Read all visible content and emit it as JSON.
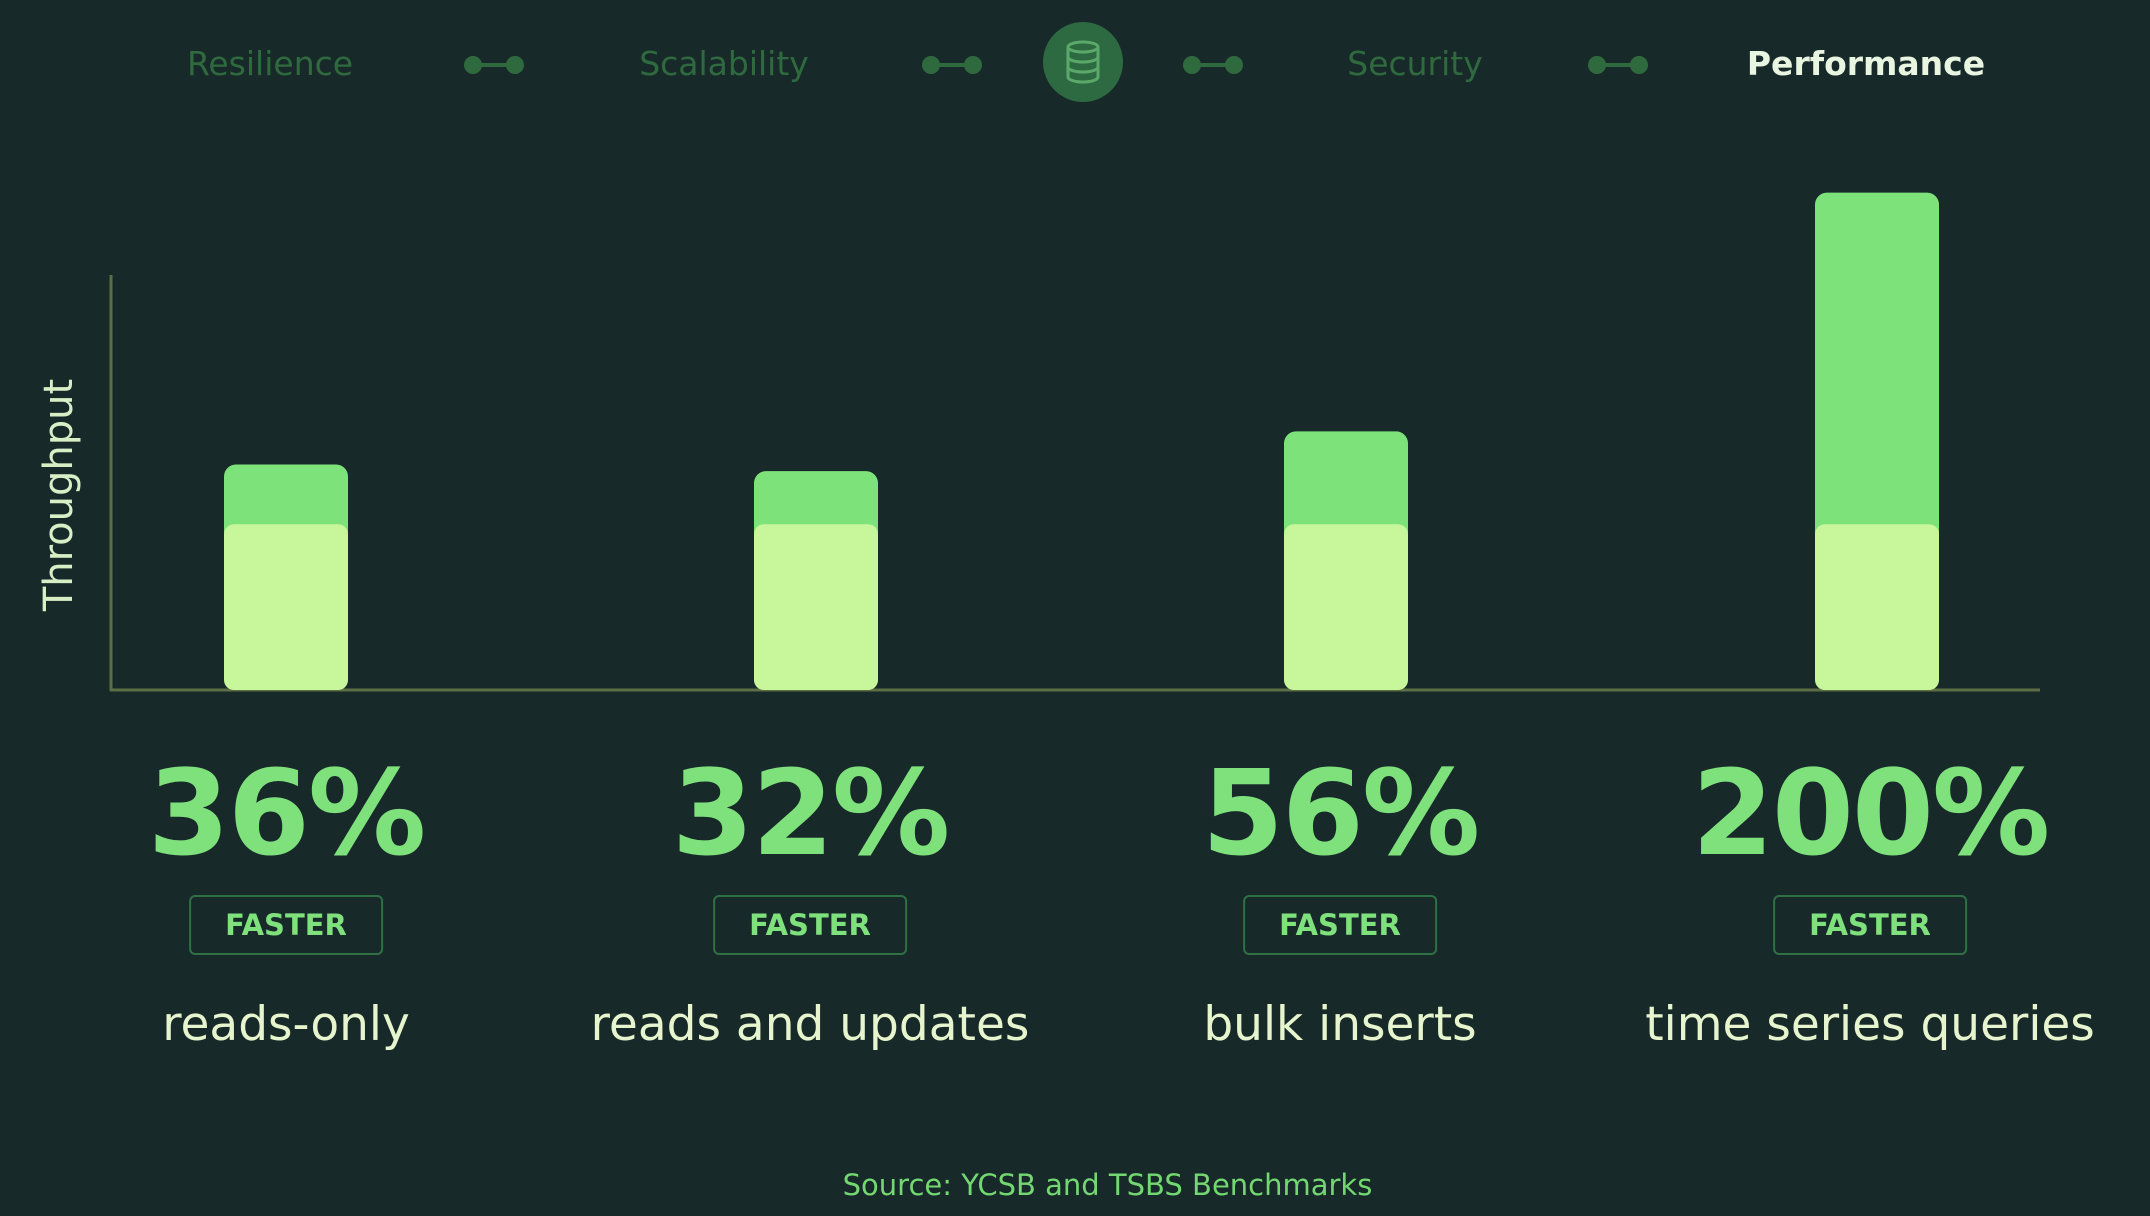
{
  "nav": {
    "items": [
      {
        "label": "Resilience",
        "active": false
      },
      {
        "label": "Scalability",
        "active": false
      },
      {
        "label": "Security",
        "active": false
      },
      {
        "label": "Performance",
        "active": true
      }
    ],
    "center_icon": "database-icon"
  },
  "chart_data": {
    "type": "bar",
    "stacked": true,
    "ylabel": "Throughput",
    "categories": [
      "reads-only",
      "reads and updates",
      "bulk inserts",
      "time series queries"
    ],
    "baseline_value": 100,
    "improvement_percent": [
      36,
      32,
      56,
      200
    ],
    "labels": [
      "36%",
      "32%",
      "56%",
      "200%"
    ],
    "badge": "FASTER",
    "ylim": [
      0,
      300
    ],
    "grid": false,
    "colors": {
      "baseline": "#c8f69b",
      "improvement": "#7ee27a",
      "axis": "#5d6e45"
    }
  },
  "source": "Source: YCSB and TSBS Benchmarks"
}
